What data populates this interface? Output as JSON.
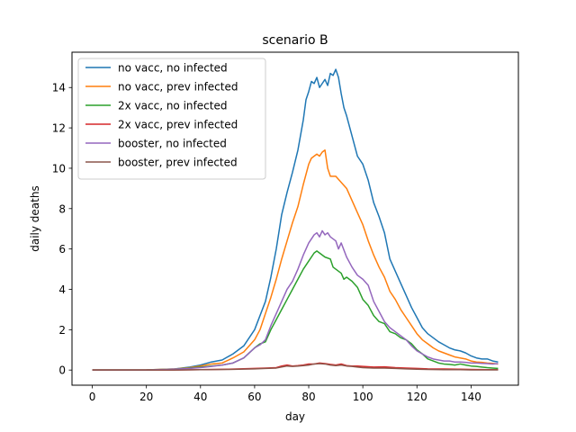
{
  "chart_data": {
    "type": "line",
    "title": "scenario B",
    "xlabel": "day",
    "ylabel": "daily deaths",
    "xlim": [
      -7.5,
      157.5
    ],
    "ylim": [
      -0.75,
      15.75
    ],
    "xticks": [
      0,
      20,
      40,
      60,
      80,
      100,
      120,
      140
    ],
    "yticks": [
      0,
      2,
      4,
      6,
      8,
      10,
      12,
      14
    ],
    "grid": false,
    "legend_position": "top-left",
    "series": [
      {
        "name": "no vacc, no infected",
        "color": "#1f77b4",
        "points": [
          [
            0,
            0
          ],
          [
            10,
            0
          ],
          [
            20,
            0.01
          ],
          [
            30,
            0.05
          ],
          [
            36,
            0.15
          ],
          [
            40,
            0.25
          ],
          [
            44,
            0.4
          ],
          [
            48,
            0.5
          ],
          [
            52,
            0.8
          ],
          [
            56,
            1.2
          ],
          [
            60,
            2
          ],
          [
            64,
            3.4
          ],
          [
            66,
            4.6
          ],
          [
            68,
            6
          ],
          [
            70,
            7.7
          ],
          [
            72,
            8.8
          ],
          [
            74,
            9.8
          ],
          [
            76,
            10.9
          ],
          [
            78,
            12.4
          ],
          [
            79,
            13.4
          ],
          [
            80,
            13.8
          ],
          [
            81,
            14.3
          ],
          [
            82,
            14.2
          ],
          [
            83,
            14.5
          ],
          [
            84,
            14.0
          ],
          [
            85,
            14.2
          ],
          [
            86,
            14.4
          ],
          [
            87,
            14.1
          ],
          [
            88,
            14.7
          ],
          [
            89,
            14.6
          ],
          [
            90,
            14.9
          ],
          [
            91,
            14.5
          ],
          [
            92,
            13.7
          ],
          [
            93,
            13.0
          ],
          [
            94,
            12.6
          ],
          [
            96,
            11.6
          ],
          [
            98,
            10.6
          ],
          [
            100,
            10.2
          ],
          [
            102,
            9.4
          ],
          [
            104,
            8.3
          ],
          [
            106,
            7.6
          ],
          [
            108,
            6.8
          ],
          [
            110,
            5.5
          ],
          [
            112,
            4.9
          ],
          [
            114,
            4.3
          ],
          [
            116,
            3.7
          ],
          [
            118,
            3.1
          ],
          [
            120,
            2.6
          ],
          [
            122,
            2.1
          ],
          [
            124,
            1.8
          ],
          [
            126,
            1.6
          ],
          [
            128,
            1.4
          ],
          [
            130,
            1.25
          ],
          [
            132,
            1.1
          ],
          [
            134,
            1.0
          ],
          [
            136,
            0.95
          ],
          [
            138,
            0.85
          ],
          [
            140,
            0.7
          ],
          [
            142,
            0.6
          ],
          [
            144,
            0.55
          ],
          [
            146,
            0.55
          ],
          [
            148,
            0.45
          ],
          [
            150,
            0.4
          ]
        ]
      },
      {
        "name": "no vacc, prev infected",
        "color": "#ff7f0e",
        "points": [
          [
            0,
            0
          ],
          [
            10,
            0
          ],
          [
            20,
            0.01
          ],
          [
            30,
            0.05
          ],
          [
            36,
            0.12
          ],
          [
            40,
            0.2
          ],
          [
            44,
            0.3
          ],
          [
            48,
            0.35
          ],
          [
            52,
            0.6
          ],
          [
            56,
            0.9
          ],
          [
            60,
            1.5
          ],
          [
            62,
            2.0
          ],
          [
            64,
            2.8
          ],
          [
            66,
            3.6
          ],
          [
            68,
            4.5
          ],
          [
            70,
            5.5
          ],
          [
            72,
            6.4
          ],
          [
            74,
            7.3
          ],
          [
            76,
            8.1
          ],
          [
            78,
            9.2
          ],
          [
            80,
            10.2
          ],
          [
            81,
            10.5
          ],
          [
            82,
            10.6
          ],
          [
            83,
            10.7
          ],
          [
            84,
            10.6
          ],
          [
            85,
            10.8
          ],
          [
            86,
            10.9
          ],
          [
            87,
            10.0
          ],
          [
            88,
            9.6
          ],
          [
            90,
            9.6
          ],
          [
            92,
            9.3
          ],
          [
            94,
            9.0
          ],
          [
            96,
            8.4
          ],
          [
            98,
            7.8
          ],
          [
            100,
            7.2
          ],
          [
            102,
            6.4
          ],
          [
            104,
            5.7
          ],
          [
            106,
            5.1
          ],
          [
            108,
            4.6
          ],
          [
            110,
            3.9
          ],
          [
            112,
            3.5
          ],
          [
            114,
            3.0
          ],
          [
            116,
            2.6
          ],
          [
            118,
            2.2
          ],
          [
            120,
            1.8
          ],
          [
            122,
            1.5
          ],
          [
            124,
            1.3
          ],
          [
            126,
            1.1
          ],
          [
            128,
            0.95
          ],
          [
            130,
            0.85
          ],
          [
            132,
            0.75
          ],
          [
            134,
            0.65
          ],
          [
            136,
            0.6
          ],
          [
            138,
            0.55
          ],
          [
            140,
            0.45
          ],
          [
            142,
            0.4
          ],
          [
            144,
            0.38
          ],
          [
            146,
            0.35
          ],
          [
            148,
            0.33
          ],
          [
            150,
            0.3
          ]
        ]
      },
      {
        "name": "2x vacc, no infected",
        "color": "#2ca02c",
        "points": [
          [
            0,
            0
          ],
          [
            10,
            0
          ],
          [
            20,
            0
          ],
          [
            30,
            0.04
          ],
          [
            36,
            0.1
          ],
          [
            40,
            0.15
          ],
          [
            44,
            0.2
          ],
          [
            48,
            0.25
          ],
          [
            52,
            0.35
          ],
          [
            56,
            0.6
          ],
          [
            60,
            1.1
          ],
          [
            62,
            1.3
          ],
          [
            64,
            1.4
          ],
          [
            66,
            2.0
          ],
          [
            68,
            2.5
          ],
          [
            70,
            3.0
          ],
          [
            72,
            3.5
          ],
          [
            74,
            4.0
          ],
          [
            76,
            4.5
          ],
          [
            78,
            5.0
          ],
          [
            80,
            5.4
          ],
          [
            82,
            5.8
          ],
          [
            83,
            5.9
          ],
          [
            84,
            5.8
          ],
          [
            86,
            5.6
          ],
          [
            88,
            5.5
          ],
          [
            89,
            5.1
          ],
          [
            90,
            5.0
          ],
          [
            92,
            4.8
          ],
          [
            93,
            4.5
          ],
          [
            94,
            4.6
          ],
          [
            96,
            4.4
          ],
          [
            98,
            4.1
          ],
          [
            100,
            3.5
          ],
          [
            102,
            3.2
          ],
          [
            104,
            2.7
          ],
          [
            106,
            2.4
          ],
          [
            108,
            2.3
          ],
          [
            110,
            1.9
          ],
          [
            112,
            1.8
          ],
          [
            114,
            1.6
          ],
          [
            116,
            1.5
          ],
          [
            118,
            1.3
          ],
          [
            120,
            1.0
          ],
          [
            122,
            0.8
          ],
          [
            124,
            0.55
          ],
          [
            126,
            0.45
          ],
          [
            128,
            0.35
          ],
          [
            130,
            0.3
          ],
          [
            132,
            0.28
          ],
          [
            134,
            0.25
          ],
          [
            136,
            0.3
          ],
          [
            138,
            0.25
          ],
          [
            140,
            0.2
          ],
          [
            142,
            0.18
          ],
          [
            144,
            0.15
          ],
          [
            146,
            0.12
          ],
          [
            148,
            0.1
          ],
          [
            150,
            0.08
          ]
        ]
      },
      {
        "name": "2x vacc, prev infected",
        "color": "#d62728",
        "points": [
          [
            0,
            0
          ],
          [
            10,
            0
          ],
          [
            20,
            0
          ],
          [
            30,
            0
          ],
          [
            40,
            0.02
          ],
          [
            50,
            0.04
          ],
          [
            60,
            0.08
          ],
          [
            64,
            0.1
          ],
          [
            68,
            0.12
          ],
          [
            70,
            0.2
          ],
          [
            72,
            0.25
          ],
          [
            74,
            0.2
          ],
          [
            76,
            0.22
          ],
          [
            78,
            0.25
          ],
          [
            80,
            0.3
          ],
          [
            82,
            0.3
          ],
          [
            84,
            0.35
          ],
          [
            86,
            0.32
          ],
          [
            88,
            0.28
          ],
          [
            90,
            0.25
          ],
          [
            92,
            0.3
          ],
          [
            94,
            0.22
          ],
          [
            96,
            0.2
          ],
          [
            98,
            0.2
          ],
          [
            100,
            0.18
          ],
          [
            104,
            0.15
          ],
          [
            108,
            0.16
          ],
          [
            112,
            0.12
          ],
          [
            116,
            0.1
          ],
          [
            120,
            0.08
          ],
          [
            124,
            0.06
          ],
          [
            130,
            0.05
          ],
          [
            136,
            0.04
          ],
          [
            140,
            0.03
          ],
          [
            146,
            0.02
          ],
          [
            150,
            0.02
          ]
        ]
      },
      {
        "name": "booster, no infected",
        "color": "#9467bd",
        "points": [
          [
            0,
            0
          ],
          [
            10,
            0
          ],
          [
            20,
            0
          ],
          [
            30,
            0.04
          ],
          [
            36,
            0.08
          ],
          [
            40,
            0.12
          ],
          [
            44,
            0.18
          ],
          [
            48,
            0.25
          ],
          [
            52,
            0.35
          ],
          [
            56,
            0.6
          ],
          [
            60,
            1.1
          ],
          [
            62,
            1.25
          ],
          [
            64,
            1.5
          ],
          [
            66,
            2.2
          ],
          [
            68,
            2.8
          ],
          [
            70,
            3.4
          ],
          [
            72,
            4.0
          ],
          [
            74,
            4.4
          ],
          [
            76,
            5.0
          ],
          [
            78,
            5.7
          ],
          [
            80,
            6.3
          ],
          [
            82,
            6.7
          ],
          [
            83,
            6.8
          ],
          [
            84,
            6.6
          ],
          [
            85,
            6.9
          ],
          [
            86,
            6.7
          ],
          [
            87,
            6.8
          ],
          [
            88,
            6.6
          ],
          [
            90,
            6.4
          ],
          [
            91,
            6.0
          ],
          [
            92,
            6.3
          ],
          [
            94,
            5.6
          ],
          [
            96,
            5.1
          ],
          [
            98,
            4.7
          ],
          [
            100,
            4.5
          ],
          [
            102,
            4.2
          ],
          [
            104,
            3.4
          ],
          [
            106,
            2.9
          ],
          [
            108,
            2.4
          ],
          [
            110,
            2.1
          ],
          [
            112,
            1.9
          ],
          [
            114,
            1.7
          ],
          [
            116,
            1.5
          ],
          [
            118,
            1.2
          ],
          [
            120,
            0.95
          ],
          [
            122,
            0.8
          ],
          [
            124,
            0.65
          ],
          [
            126,
            0.55
          ],
          [
            128,
            0.5
          ],
          [
            130,
            0.45
          ],
          [
            132,
            0.45
          ],
          [
            134,
            0.4
          ],
          [
            136,
            0.4
          ],
          [
            138,
            0.38
          ],
          [
            140,
            0.35
          ],
          [
            142,
            0.35
          ],
          [
            144,
            0.33
          ],
          [
            146,
            0.32
          ],
          [
            148,
            0.3
          ],
          [
            150,
            0.32
          ]
        ]
      },
      {
        "name": "booster, prev infected",
        "color": "#8c564b",
        "points": [
          [
            0,
            0
          ],
          [
            10,
            0
          ],
          [
            20,
            0
          ],
          [
            30,
            0
          ],
          [
            40,
            0.02
          ],
          [
            50,
            0.03
          ],
          [
            60,
            0.06
          ],
          [
            64,
            0.08
          ],
          [
            68,
            0.1
          ],
          [
            70,
            0.15
          ],
          [
            72,
            0.2
          ],
          [
            74,
            0.18
          ],
          [
            76,
            0.2
          ],
          [
            78,
            0.22
          ],
          [
            80,
            0.25
          ],
          [
            82,
            0.3
          ],
          [
            84,
            0.32
          ],
          [
            86,
            0.3
          ],
          [
            88,
            0.25
          ],
          [
            90,
            0.22
          ],
          [
            92,
            0.25
          ],
          [
            94,
            0.2
          ],
          [
            96,
            0.18
          ],
          [
            98,
            0.15
          ],
          [
            100,
            0.12
          ],
          [
            104,
            0.1
          ],
          [
            108,
            0.1
          ],
          [
            112,
            0.08
          ],
          [
            116,
            0.06
          ],
          [
            120,
            0.04
          ],
          [
            124,
            0.03
          ],
          [
            130,
            0.02
          ],
          [
            136,
            0.02
          ],
          [
            140,
            0.01
          ],
          [
            146,
            0.01
          ],
          [
            150,
            0.01
          ]
        ]
      }
    ]
  }
}
